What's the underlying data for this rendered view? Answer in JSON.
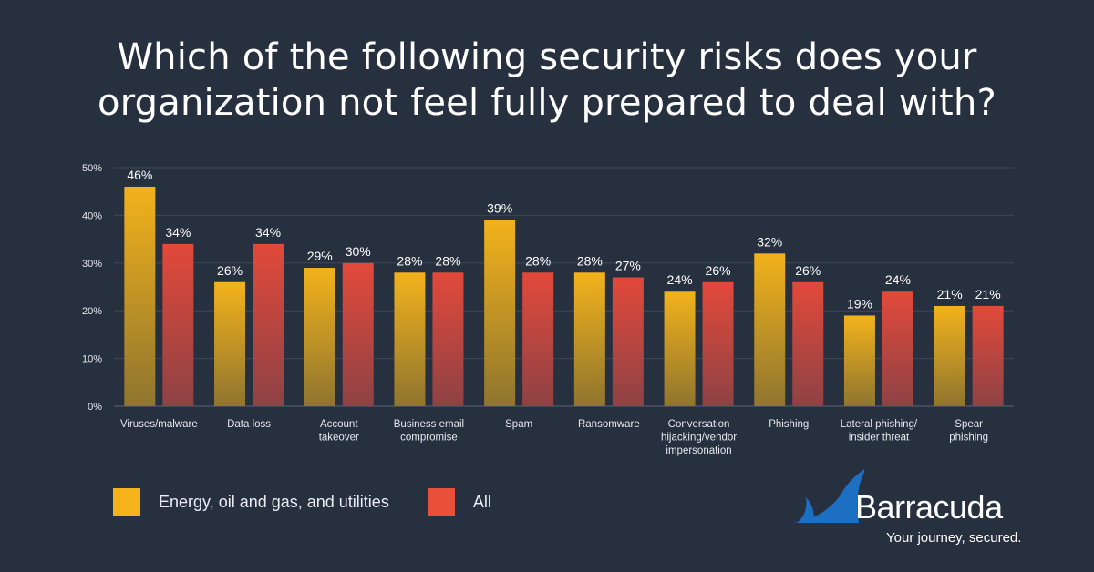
{
  "title": {
    "line1": "Which of the following security risks does your",
    "line2": "organization not feel fully prepared to deal with?"
  },
  "chart_data": {
    "type": "bar",
    "title": "Which of the following security risks does your organization not feel fully prepared to deal with?",
    "categories": [
      [
        "Viruses/malware"
      ],
      [
        "Data loss"
      ],
      [
        "Account",
        "takeover"
      ],
      [
        "Business email",
        "compromise"
      ],
      [
        "Spam"
      ],
      [
        "Ransomware"
      ],
      [
        "Conversation",
        "hijacking/vendor",
        "impersonation"
      ],
      [
        "Phishing"
      ],
      [
        "Lateral phishing/",
        "insider threat"
      ],
      [
        "Spear",
        "phishing"
      ]
    ],
    "series": [
      {
        "name": "Energy, oil and gas, and utilities",
        "values": [
          46,
          26,
          29,
          28,
          39,
          28,
          24,
          32,
          19,
          21
        ],
        "labels": [
          "46%",
          "26%",
          "29%",
          "28%",
          "39%",
          "28%",
          "24%",
          "32%",
          "19%",
          "21%"
        ],
        "color": "#f2b21b"
      },
      {
        "name": "All",
        "values": [
          34,
          34,
          30,
          28,
          28,
          27,
          26,
          26,
          24,
          21
        ],
        "labels": [
          "34%",
          "34%",
          "30%",
          "28%",
          "28%",
          "27%",
          "26%",
          "26%",
          "24%",
          "21%"
        ],
        "color": "#e2493a"
      }
    ],
    "yticks": [
      "0%",
      "10%",
      "20%",
      "30%",
      "40%",
      "50%"
    ],
    "ylim": [
      0,
      50
    ],
    "grid": true,
    "legend_position": "bottom-left"
  },
  "legend": {
    "items": [
      {
        "label": "Energy, oil and gas, and utilities",
        "color": "#f5b21a"
      },
      {
        "label": "All",
        "color": "#e8503a"
      }
    ]
  },
  "logo": {
    "brand": "Barracuda",
    "tagline": "Your journey, secured.",
    "color": "#1d6fc4"
  }
}
